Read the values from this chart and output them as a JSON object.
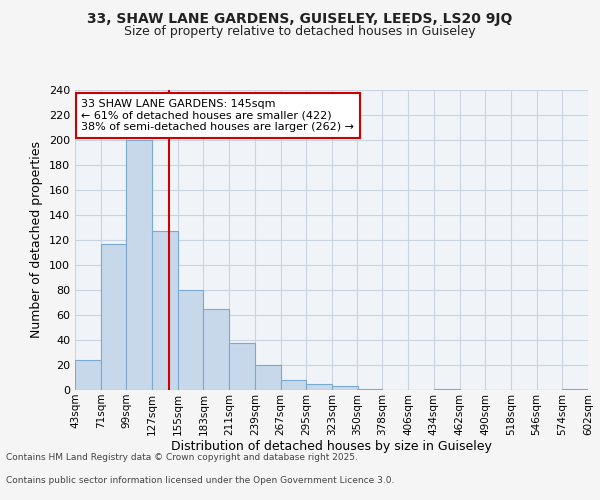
{
  "title1": "33, SHAW LANE GARDENS, GUISELEY, LEEDS, LS20 9JQ",
  "title2": "Size of property relative to detached houses in Guiseley",
  "xlabel": "Distribution of detached houses by size in Guiseley",
  "ylabel": "Number of detached properties",
  "bar_values": [
    24,
    117,
    200,
    127,
    80,
    65,
    38,
    20,
    8,
    5,
    3,
    1,
    0,
    0,
    1,
    0,
    0,
    0,
    0,
    1
  ],
  "bin_edges": [
    43,
    71,
    99,
    127,
    155,
    183,
    211,
    239,
    267,
    295,
    323,
    350,
    378,
    406,
    434,
    462,
    490,
    518,
    546,
    574,
    602
  ],
  "x_labels": [
    "43sqm",
    "71sqm",
    "99sqm",
    "127sqm",
    "155sqm",
    "183sqm",
    "211sqm",
    "239sqm",
    "267sqm",
    "295sqm",
    "323sqm",
    "350sqm",
    "378sqm",
    "406sqm",
    "434sqm",
    "462sqm",
    "490sqm",
    "518sqm",
    "546sqm",
    "574sqm",
    "602sqm"
  ],
  "bar_color": "#c8d8eb",
  "bar_edge_color": "#7aaad0",
  "red_line_x": 145,
  "ylim": [
    0,
    240
  ],
  "yticks": [
    0,
    20,
    40,
    60,
    80,
    100,
    120,
    140,
    160,
    180,
    200,
    220,
    240
  ],
  "annotation_title": "33 SHAW LANE GARDENS: 145sqm",
  "annotation_line1": "← 61% of detached houses are smaller (422)",
  "annotation_line2": "38% of semi-detached houses are larger (262) →",
  "annotation_box_color": "#ffffff",
  "annotation_box_edge": "#cc0000",
  "footer1": "Contains HM Land Registry data © Crown copyright and database right 2025.",
  "footer2": "Contains public sector information licensed under the Open Government Licence 3.0.",
  "fig_bg_color": "#f5f5f5",
  "plot_bg_color": "#f0f4f8",
  "grid_color": "#c8d4e0",
  "title_fontsize": 10,
  "subtitle_fontsize": 9
}
